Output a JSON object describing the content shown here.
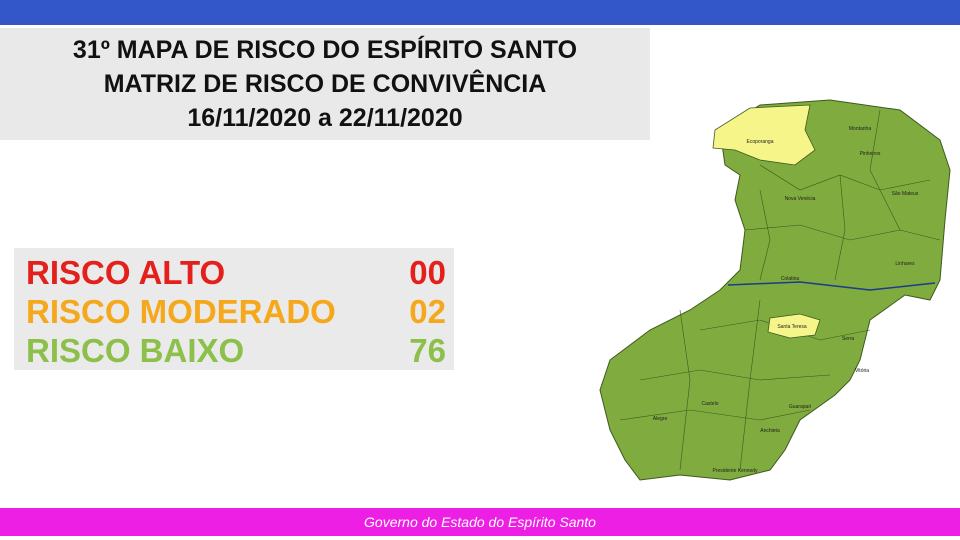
{
  "header": {
    "title": [
      "31º MAPA DE RISCO DO ESPÍRITO SANTO",
      "MATRIZ DE RISCO DE CONVIVÊNCIA",
      "16/11/2020 a 22/11/2020"
    ]
  },
  "risk": [
    {
      "label": "RISCO ALTO",
      "value": "00",
      "color": "#e3201b"
    },
    {
      "label": "RISCO MODERADO",
      "value": "02",
      "color": "#f5a81c"
    },
    {
      "label": "RISCO BAIXO",
      "value": "76",
      "color": "#8cc04b"
    }
  ],
  "map": {
    "labels": [
      "Ecoporanga",
      "Montanha",
      "Pinheiros",
      "São Mateus",
      "Nova Venécia",
      "Linhares",
      "Colatina",
      "Santa Teresa",
      "Serra",
      "Vitória",
      "Guarapari",
      "Anchieta",
      "Alegre",
      "Castelo",
      "Presidente Kennedy"
    ]
  },
  "footer": {
    "text": "Governo do Estado do Espírito Santo"
  }
}
